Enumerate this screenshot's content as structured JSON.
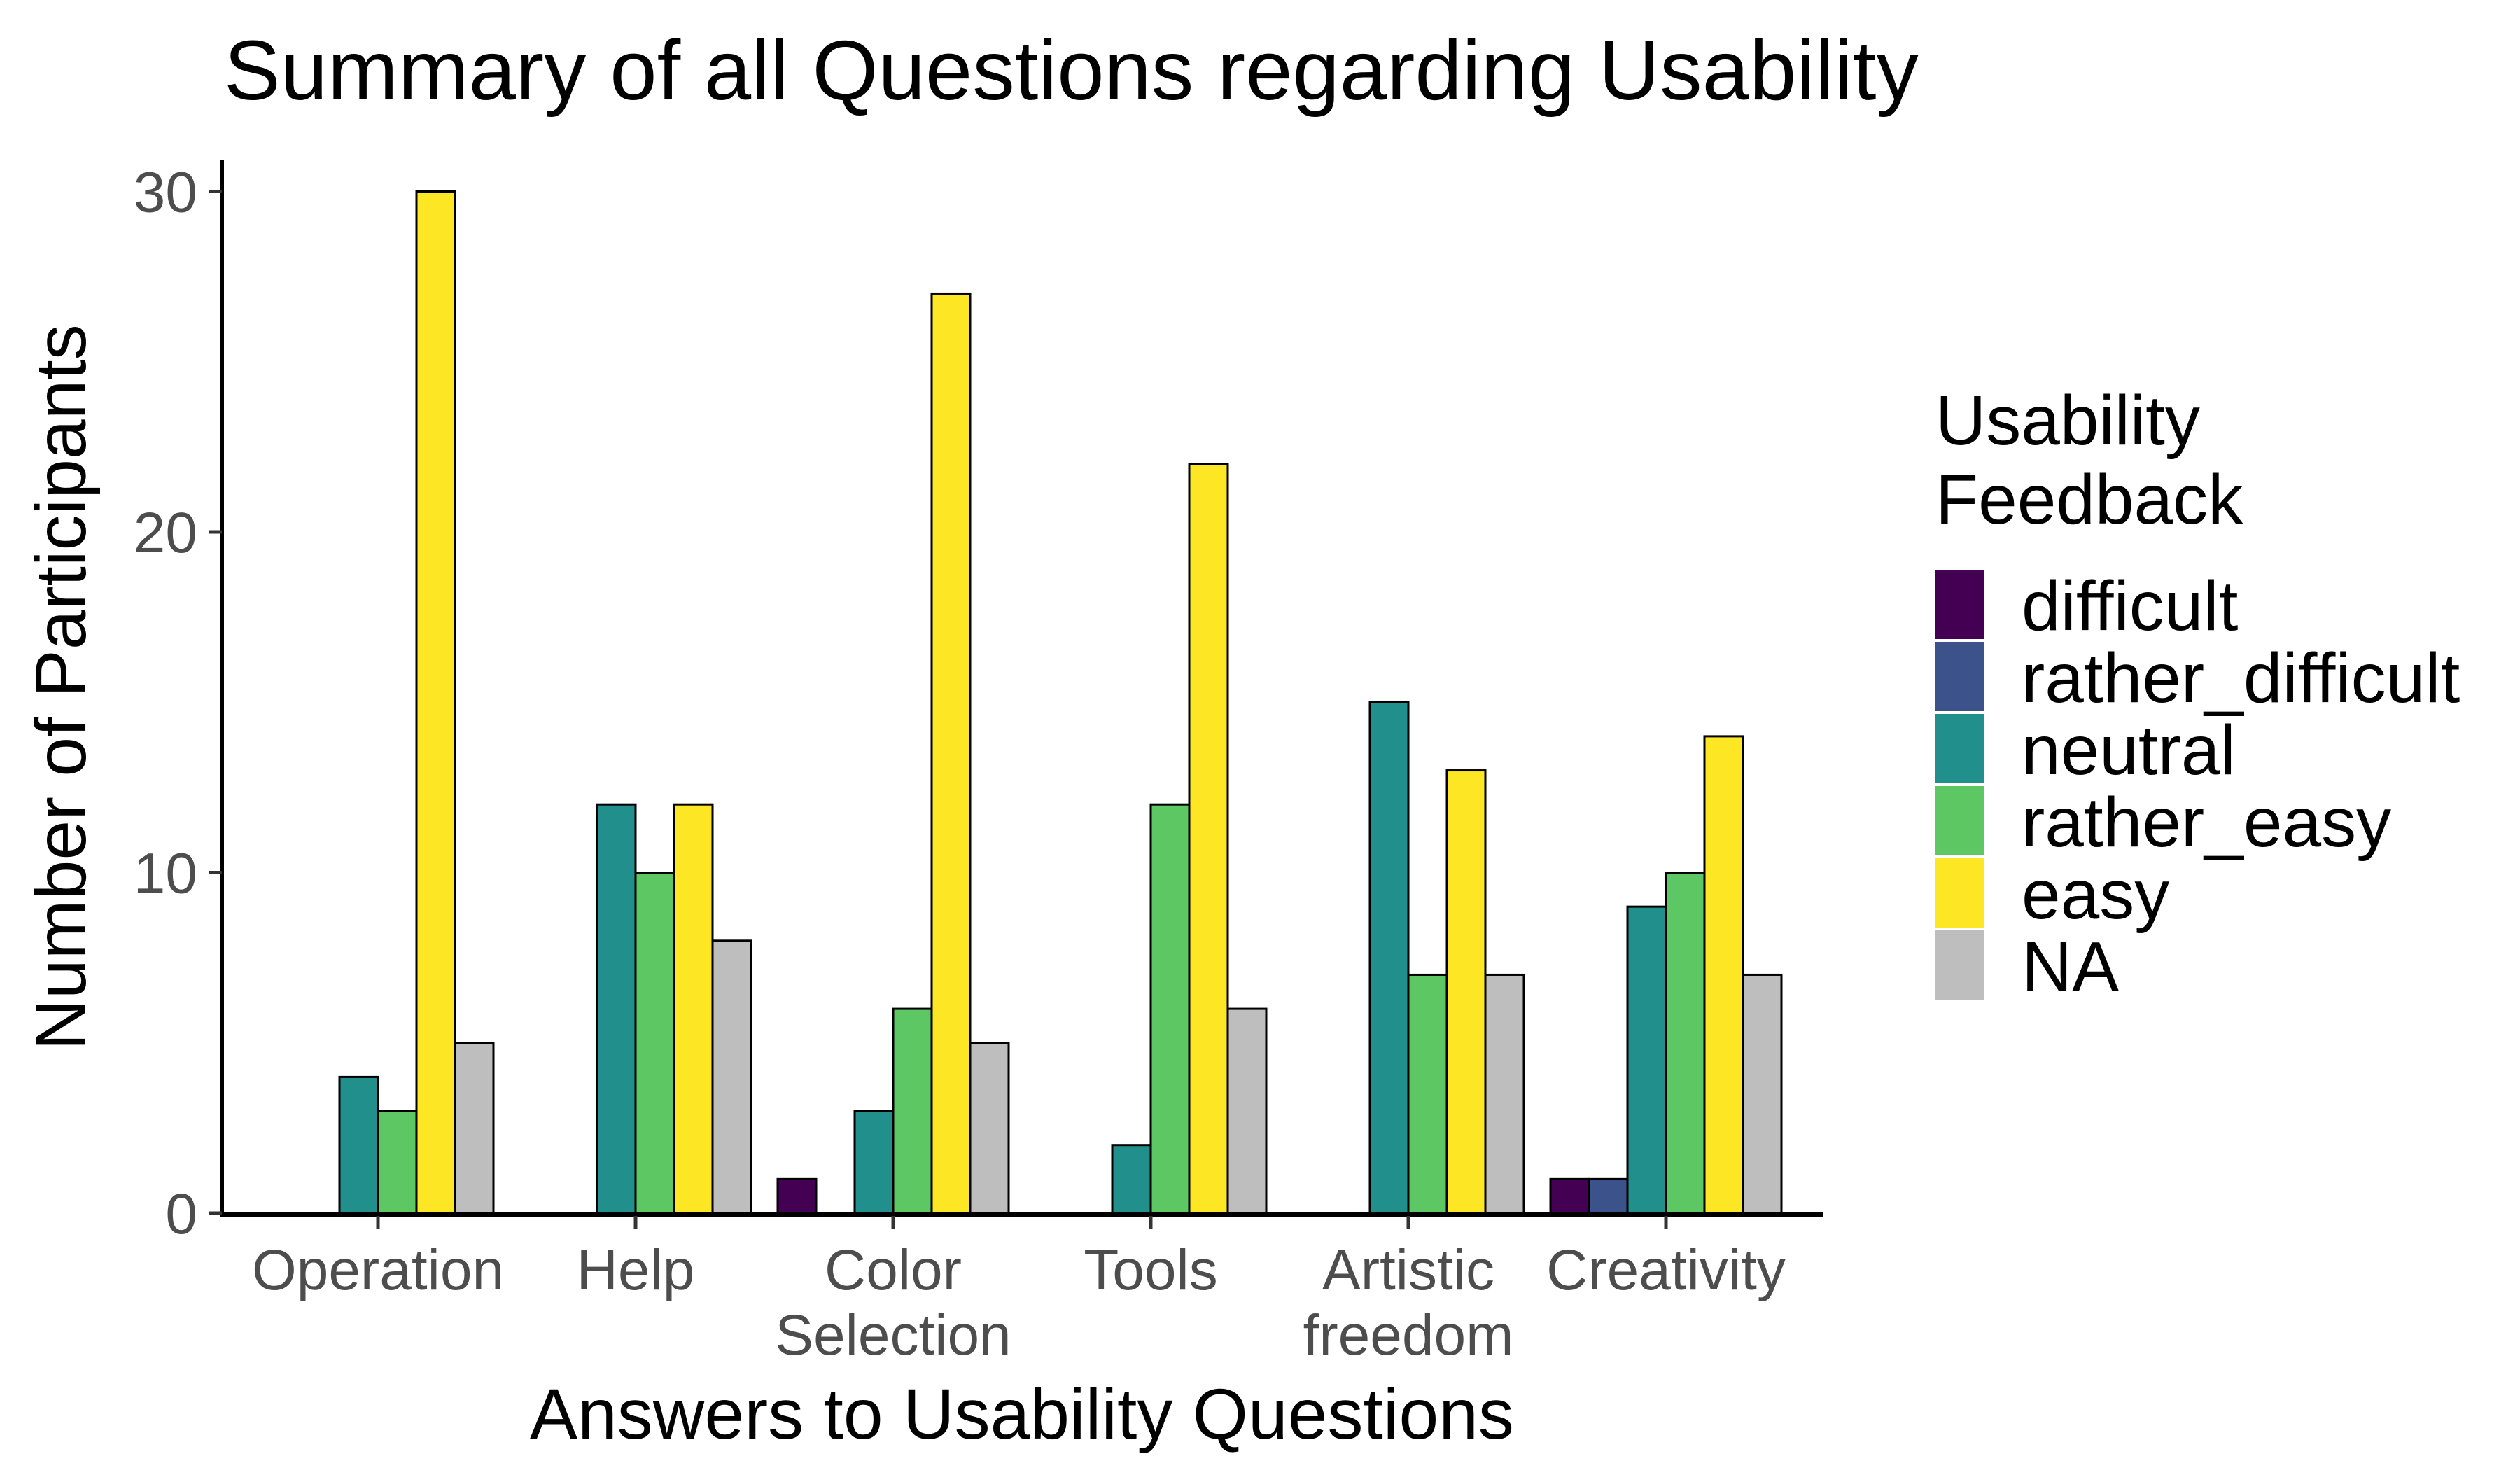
{
  "chart_data": {
    "type": "bar",
    "title": "Summary of all Questions regarding Usability",
    "xlabel": "Answers to Usability Questions",
    "ylabel": "Number of Participants",
    "ylim": [
      0,
      31
    ],
    "yticks": [
      0,
      10,
      20,
      30
    ],
    "grid": false,
    "categories": [
      [
        "Operation"
      ],
      [
        "Help"
      ],
      [
        "Color",
        "Selection"
      ],
      [
        "Tools"
      ],
      [
        "Artistic",
        "freedom"
      ],
      [
        "Creativity"
      ]
    ],
    "legend": {
      "title": [
        "Usability",
        "Feedback"
      ],
      "position": "right"
    },
    "series": [
      {
        "name": "difficult",
        "color": "#440154",
        "values": [
          0,
          0,
          1,
          0,
          0,
          1
        ]
      },
      {
        "name": "rather_difficult",
        "color": "#3B528B",
        "values": [
          0,
          0,
          0,
          0,
          0,
          1
        ]
      },
      {
        "name": "neutral",
        "color": "#21908C",
        "values": [
          4,
          12,
          3,
          2,
          15,
          9
        ]
      },
      {
        "name": "rather_easy",
        "color": "#5DC863",
        "values": [
          3,
          10,
          6,
          12,
          7,
          10
        ]
      },
      {
        "name": "easy",
        "color": "#FDE725",
        "values": [
          30,
          12,
          27,
          22,
          13,
          14
        ]
      },
      {
        "name": "NA",
        "color": "#BEBEBE",
        "values": [
          5,
          8,
          5,
          6,
          7,
          7
        ]
      }
    ]
  }
}
